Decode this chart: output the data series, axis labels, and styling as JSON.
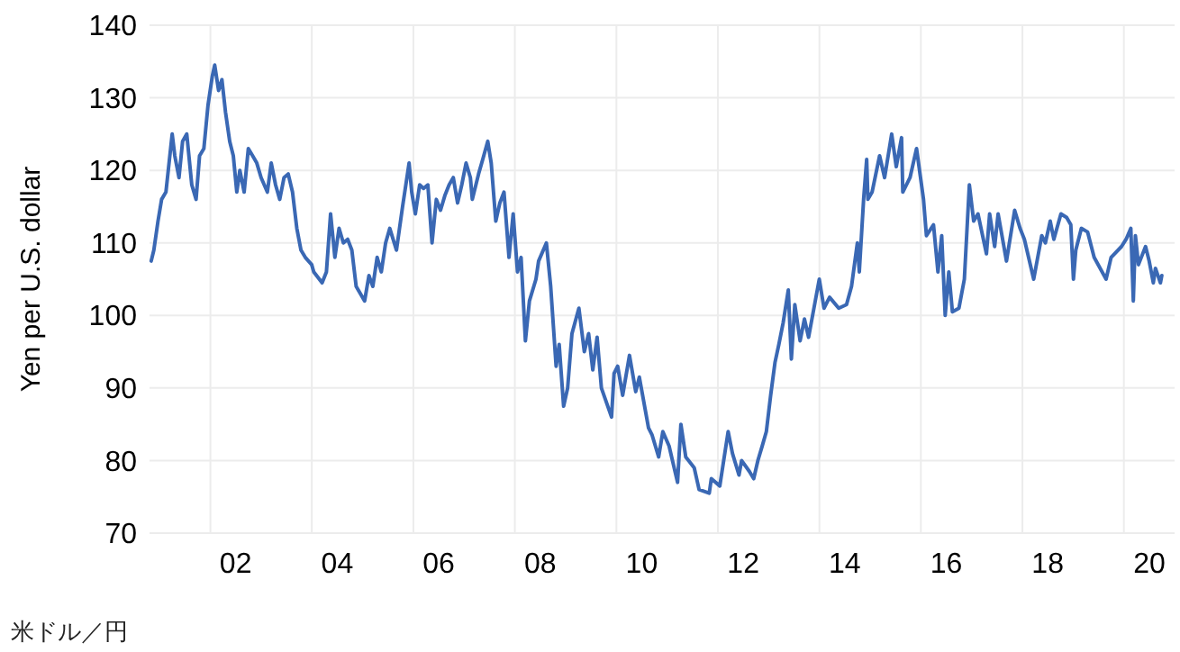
{
  "chart_data": {
    "type": "line",
    "ylabel": "Yen per U.S. dollar",
    "annotations": [
      "米ドル／円"
    ],
    "grid": true,
    "marker": "none",
    "line_style": "solid",
    "xlim": [
      "2000-10-20",
      "2020-12-31"
    ],
    "ylim": [
      70,
      140
    ],
    "yticks": [
      70,
      80,
      90,
      100,
      110,
      120,
      130,
      140
    ],
    "xticks": [
      {
        "value": "2002-01-01",
        "label": null
      },
      {
        "value": "2002-07-02",
        "label": "02"
      },
      {
        "value": "2004-01-01",
        "label": null
      },
      {
        "value": "2004-07-02",
        "label": "04"
      },
      {
        "value": "2006-01-01",
        "label": null
      },
      {
        "value": "2006-07-02",
        "label": "06"
      },
      {
        "value": "2008-01-01",
        "label": null
      },
      {
        "value": "2008-07-02",
        "label": "08"
      },
      {
        "value": "2010-01-01",
        "label": null
      },
      {
        "value": "2010-07-02",
        "label": "10"
      },
      {
        "value": "2012-01-01",
        "label": null
      },
      {
        "value": "2012-07-02",
        "label": "12"
      },
      {
        "value": "2014-01-01",
        "label": null
      },
      {
        "value": "2014-07-02",
        "label": "14"
      },
      {
        "value": "2016-01-01",
        "label": null
      },
      {
        "value": "2016-07-02",
        "label": "16"
      },
      {
        "value": "2018-01-01",
        "label": null
      },
      {
        "value": "2018-07-02",
        "label": "18"
      },
      {
        "value": "2020-01-01",
        "label": null
      },
      {
        "value": "2020-07-02",
        "label": "20"
      }
    ],
    "x": [
      "2000-11-01",
      "2000-11-20",
      "2000-12-20",
      "2001-01-15",
      "2001-02-15",
      "2001-04-01",
      "2001-04-20",
      "2001-05-20",
      "2001-06-15",
      "2001-07-15",
      "2001-08-20",
      "2001-09-20",
      "2001-10-15",
      "2001-11-15",
      "2001-12-15",
      "2002-01-15",
      "2002-02-01",
      "2002-03-01",
      "2002-03-25",
      "2002-04-20",
      "2002-05-20",
      "2002-06-15",
      "2002-07-10",
      "2002-08-01",
      "2002-09-01",
      "2002-10-01",
      "2002-11-01",
      "2002-12-01",
      "2003-01-01",
      "2003-02-15",
      "2003-03-15",
      "2003-04-15",
      "2003-05-15",
      "2003-06-15",
      "2003-07-15",
      "2003-08-15",
      "2003-09-15",
      "2003-10-15",
      "2003-11-15",
      "2003-12-31",
      "2004-01-15",
      "2004-03-15",
      "2004-04-15",
      "2004-05-15",
      "2004-06-15",
      "2004-07-15",
      "2004-08-15",
      "2004-09-15",
      "2004-10-15",
      "2004-11-15",
      "2005-01-15",
      "2005-02-15",
      "2005-03-15",
      "2005-04-15",
      "2005-05-15",
      "2005-06-15",
      "2005-07-15",
      "2005-09-01",
      "2005-10-15",
      "2005-12-01",
      "2005-12-20",
      "2006-01-15",
      "2006-02-15",
      "2006-03-15",
      "2006-04-15",
      "2006-05-15",
      "2006-06-15",
      "2006-07-15",
      "2006-08-15",
      "2006-09-15",
      "2006-10-15",
      "2006-11-15",
      "2006-12-15",
      "2007-01-15",
      "2007-02-15",
      "2007-03-01",
      "2007-04-15",
      "2007-05-15",
      "2007-06-20",
      "2007-07-15",
      "2007-08-17",
      "2007-09-15",
      "2007-10-15",
      "2007-11-20",
      "2007-12-20",
      "2008-01-20",
      "2008-02-15",
      "2008-03-17",
      "2008-04-15",
      "2008-06-01",
      "2008-06-20",
      "2008-08-15",
      "2008-09-15",
      "2008-10-24",
      "2008-11-15",
      "2008-12-17",
      "2009-01-15",
      "2009-02-15",
      "2009-04-06",
      "2009-05-15",
      "2009-06-15",
      "2009-07-15",
      "2009-08-15",
      "2009-09-15",
      "2009-11-27",
      "2009-12-15",
      "2010-01-10",
      "2010-02-15",
      "2010-04-05",
      "2010-05-20",
      "2010-06-15",
      "2010-08-20",
      "2010-09-15",
      "2010-11-01",
      "2010-12-01",
      "2011-01-15",
      "2011-03-17",
      "2011-04-10",
      "2011-05-15",
      "2011-07-15",
      "2011-08-19",
      "2011-10-31",
      "2011-11-15",
      "2012-01-15",
      "2012-03-15",
      "2012-04-15",
      "2012-06-01",
      "2012-06-20",
      "2012-08-15",
      "2012-09-15",
      "2012-10-15",
      "2012-11-15",
      "2012-12-15",
      "2013-01-15",
      "2013-02-15",
      "2013-03-15",
      "2013-04-15",
      "2013-05-22",
      "2013-06-13",
      "2013-07-08",
      "2013-08-15",
      "2013-09-15",
      "2013-10-15",
      "2013-12-31",
      "2014-02-03",
      "2014-03-15",
      "2014-05-20",
      "2014-07-15",
      "2014-08-20",
      "2014-10-01",
      "2014-10-15",
      "2014-11-15",
      "2014-12-07",
      "2014-12-16",
      "2015-01-15",
      "2015-03-10",
      "2015-04-15",
      "2015-06-05",
      "2015-07-08",
      "2015-08-15",
      "2015-08-24",
      "2015-10-15",
      "2015-12-01",
      "2016-01-20",
      "2016-02-10",
      "2016-04-01",
      "2016-05-03",
      "2016-05-30",
      "2016-06-24",
      "2016-07-20",
      "2016-08-15",
      "2016-10-01",
      "2016-11-09",
      "2016-12-15",
      "2017-01-15",
      "2017-02-15",
      "2017-04-17",
      "2017-05-10",
      "2017-06-15",
      "2017-07-10",
      "2017-09-08",
      "2017-11-06",
      "2017-12-15",
      "2018-01-15",
      "2018-03-23",
      "2018-05-20",
      "2018-06-15",
      "2018-07-20",
      "2018-08-15",
      "2018-10-05",
      "2018-11-15",
      "2018-12-15",
      "2019-01-03",
      "2019-01-20",
      "2019-03-01",
      "2019-04-15",
      "2019-06-01",
      "2019-08-26",
      "2019-10-01",
      "2019-12-15",
      "2020-01-17",
      "2020-02-20",
      "2020-03-09",
      "2020-03-24",
      "2020-04-15",
      "2020-06-05",
      "2020-07-01",
      "2020-07-31",
      "2020-08-15",
      "2020-09-20",
      "2020-09-30"
    ],
    "series": [
      {
        "color": "#3a68b4",
        "values": [
          107.5,
          109,
          113,
          116,
          117,
          125,
          122,
          119,
          124,
          125,
          118,
          116,
          122,
          123,
          129,
          133,
          134.5,
          131,
          132.5,
          128,
          124,
          122,
          117,
          120,
          117,
          123,
          122,
          121,
          119,
          117,
          121,
          118,
          116,
          119,
          119.5,
          117,
          112,
          109,
          108,
          107,
          106,
          104.5,
          106,
          114,
          108,
          112,
          110,
          110.5,
          109,
          104,
          102,
          105.5,
          104,
          108,
          106,
          110,
          112,
          109,
          115,
          121,
          117,
          114,
          118,
          117.5,
          118,
          110,
          116,
          114.5,
          116.5,
          118,
          119,
          115.5,
          118,
          121,
          119,
          116,
          119.5,
          121.5,
          124,
          121,
          113,
          115.5,
          117,
          108,
          114,
          106,
          108,
          96.5,
          102,
          105,
          107.5,
          110,
          104,
          93,
          96,
          87.5,
          90,
          97.5,
          101,
          95,
          97.5,
          92.5,
          97,
          90,
          86,
          92,
          93,
          89,
          94.5,
          89.5,
          91.5,
          84.5,
          83.5,
          80.5,
          84,
          82,
          77,
          85,
          80.5,
          79,
          76,
          75.5,
          77.5,
          76.5,
          84,
          81,
          78,
          80,
          78.5,
          77.5,
          80,
          82,
          84,
          89,
          93.5,
          96,
          99,
          103.5,
          94,
          101.5,
          96.5,
          99.5,
          97,
          105,
          101,
          102.5,
          101,
          101.5,
          104,
          110,
          106,
          116,
          121.5,
          116,
          117,
          122,
          119,
          125,
          120.5,
          124.5,
          117,
          119,
          123,
          116,
          111,
          112.5,
          106,
          111,
          100,
          106,
          100.5,
          101,
          105,
          118,
          113,
          114,
          108.5,
          114,
          109.5,
          114,
          107.5,
          114.5,
          112,
          110.5,
          105,
          111,
          110,
          113,
          110.5,
          114,
          113.5,
          112.5,
          105,
          109,
          112,
          111.5,
          108,
          105,
          108,
          109.5,
          110.5,
          112,
          102,
          111,
          107,
          109.5,
          107.5,
          104.5,
          106.5,
          104.5,
          105.5
        ]
      }
    ]
  }
}
